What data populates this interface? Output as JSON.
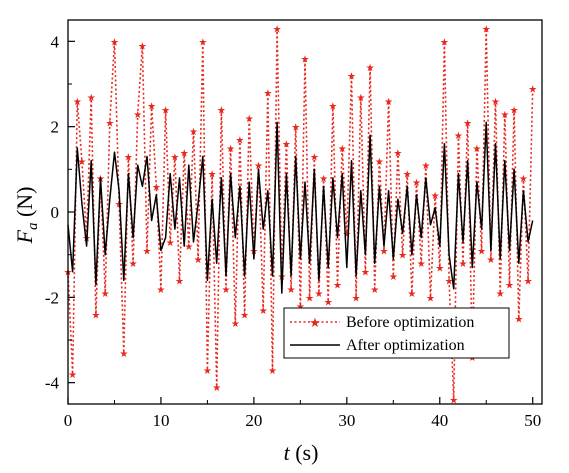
{
  "chart_data": {
    "type": "line",
    "xlabel": {
      "italic": "t",
      "unit": " (s)"
    },
    "ylabel": {
      "base": "F",
      "sub": "a",
      "unit": " (N)"
    },
    "xlim": [
      0,
      51
    ],
    "ylim": [
      -4.5,
      4.5
    ],
    "x_ticks": [
      0,
      10,
      20,
      30,
      40,
      50
    ],
    "y_ticks": [
      4,
      2,
      0,
      -2,
      -4
    ],
    "x_tick_labels": [
      "0",
      "10",
      "20",
      "30",
      "40",
      "50"
    ],
    "y_tick_labels": [
      "4",
      "2",
      "0",
      "-2",
      "-4"
    ],
    "legend_position": "bottom-right",
    "grid": false,
    "series": [
      {
        "name": "Before optimization",
        "color": "#e8281e",
        "style": "dotted-with-star-markers",
        "x": [
          0,
          0.5,
          1,
          1.5,
          2,
          2.5,
          3,
          3.5,
          4,
          4.5,
          5,
          5.5,
          6,
          6.5,
          7,
          7.5,
          8,
          8.5,
          9,
          9.5,
          10,
          10.5,
          11,
          11.5,
          12,
          12.5,
          13,
          13.5,
          14,
          14.5,
          15,
          15.5,
          16,
          16.5,
          17,
          17.5,
          18,
          18.5,
          19,
          19.5,
          20,
          20.5,
          21,
          21.5,
          22,
          22.5,
          23,
          23.5,
          24,
          24.5,
          25,
          25.5,
          26,
          26.5,
          27,
          27.5,
          28,
          28.5,
          29,
          29.5,
          30,
          30.5,
          31,
          31.5,
          32,
          32.5,
          33,
          33.5,
          34,
          34.5,
          35,
          35.5,
          36,
          36.5,
          37,
          37.5,
          38,
          38.5,
          39,
          39.5,
          40,
          40.5,
          41,
          41.5,
          42,
          42.5,
          43,
          43.5,
          44,
          44.5,
          45,
          45.5,
          46,
          46.5,
          47,
          47.5,
          48,
          48.5,
          49,
          49.5,
          50
        ],
        "y": [
          -1.4,
          -3.8,
          2.6,
          1.2,
          -0.6,
          2.7,
          -2.4,
          0.8,
          -1.9,
          2.1,
          4.0,
          0.2,
          -3.3,
          1.3,
          -1.2,
          2.3,
          3.9,
          -0.9,
          2.5,
          0.6,
          -1.8,
          2.4,
          -0.7,
          1.3,
          -1.6,
          1.4,
          -0.8,
          1.9,
          -1.1,
          4.0,
          -3.7,
          0.9,
          -4.1,
          2.4,
          -1.8,
          1.5,
          -2.6,
          1.7,
          -2.4,
          2.2,
          -0.9,
          1.1,
          -2.3,
          2.8,
          -3.7,
          4.3,
          -1.5,
          1.6,
          -1.8,
          2.0,
          -2.2,
          3.6,
          -2.0,
          1.3,
          -1.9,
          0.8,
          -2.1,
          2.5,
          -1.7,
          1.5,
          -0.5,
          3.2,
          -2.0,
          2.7,
          -1.4,
          3.4,
          -1.8,
          1.2,
          -0.9,
          2.6,
          -1.5,
          1.4,
          -1.0,
          0.9,
          -1.9,
          0.7,
          -1.2,
          1.1,
          -2.0,
          0.4,
          -1.3,
          4.0,
          -1.6,
          -4.4,
          1.8,
          -1.2,
          2.1,
          -3.4,
          1.5,
          -0.9,
          4.3,
          -1.1,
          2.6,
          -1.9,
          2.3,
          -1.7,
          2.4,
          -2.5,
          0.8,
          -1.6,
          2.9
        ]
      },
      {
        "name": "After optimization",
        "color": "#000000",
        "style": "solid",
        "x": [
          0,
          0.5,
          1,
          1.5,
          2,
          2.5,
          3,
          3.5,
          4,
          4.5,
          5,
          5.5,
          6,
          6.5,
          7,
          7.5,
          8,
          8.5,
          9,
          9.5,
          10,
          10.5,
          11,
          11.5,
          12,
          12.5,
          13,
          13.5,
          14,
          14.5,
          15,
          15.5,
          16,
          16.5,
          17,
          17.5,
          18,
          18.5,
          19,
          19.5,
          20,
          20.5,
          21,
          21.5,
          22,
          22.5,
          23,
          23.5,
          24,
          24.5,
          25,
          25.5,
          26,
          26.5,
          27,
          27.5,
          28,
          28.5,
          29,
          29.5,
          30,
          30.5,
          31,
          31.5,
          32,
          32.5,
          33,
          33.5,
          34,
          34.5,
          35,
          35.5,
          36,
          36.5,
          37,
          37.5,
          38,
          38.5,
          39,
          39.5,
          40,
          40.5,
          41,
          41.5,
          42,
          42.5,
          43,
          43.5,
          44,
          44.5,
          45,
          45.5,
          46,
          46.5,
          47,
          47.5,
          48,
          48.5,
          49,
          49.5,
          50
        ],
        "y": [
          -0.3,
          -1.4,
          1.5,
          0.2,
          -0.8,
          1.2,
          -1.7,
          0.8,
          -1.0,
          0.3,
          1.4,
          0.5,
          -1.6,
          0.9,
          -0.6,
          1.1,
          0.6,
          1.3,
          -0.2,
          0.4,
          -0.9,
          -0.6,
          0.9,
          -0.4,
          0.8,
          -0.8,
          1.1,
          -0.7,
          0.2,
          1.3,
          -1.6,
          0.3,
          -1.2,
          0.8,
          -1.5,
          0.9,
          -0.6,
          0.6,
          -1.5,
          0.7,
          -1.1,
          1.0,
          -0.4,
          0.5,
          -1.5,
          2.1,
          -1.9,
          0.9,
          -1.5,
          1.3,
          -1.1,
          0.7,
          -1.2,
          1.0,
          -1.6,
          0.6,
          -1.3,
          0.8,
          -0.6,
          0.9,
          -1.3,
          1.2,
          -1.5,
          0.5,
          -1.0,
          1.8,
          -1.2,
          0.6,
          -0.8,
          0.5,
          -1.1,
          0.3,
          -0.5,
          0.6,
          -1.0,
          0.4,
          -0.6,
          0.8,
          -0.3,
          0.1,
          -0.8,
          1.6,
          -1.0,
          -1.8,
          0.9,
          -0.7,
          1.2,
          -1.3,
          0.7,
          -0.4,
          2.1,
          -0.9,
          1.6,
          -1.1,
          1.2,
          -0.9,
          1.0,
          -1.2,
          0.5,
          -0.7,
          -0.2
        ]
      }
    ]
  }
}
